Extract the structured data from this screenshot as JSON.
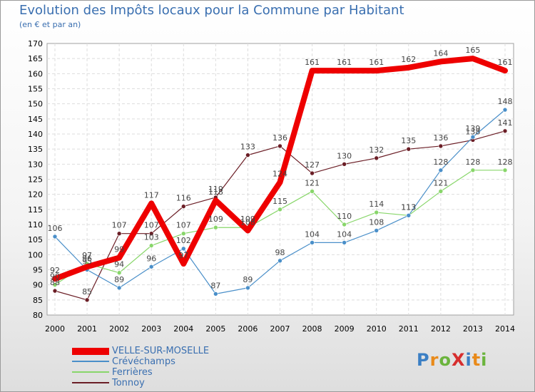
{
  "header": {
    "title": "Evolution des Impôts locaux pour la Commune par Habitant",
    "subtitle": "(en € et par an)"
  },
  "logo": "ProXiti",
  "colors": {
    "title": "#3a6fb0",
    "VELLE-SUR-MOSELLE": "#ee0000",
    "Crévéchamps": "#4a8fc9",
    "Ferrières": "#88d66a",
    "Tonnoy": "#6b1e26"
  },
  "chart_data": {
    "type": "line",
    "title": "Evolution des Impôts locaux pour la Commune par Habitant",
    "subtitle": "(en € et par an)",
    "x": [
      "2000",
      "2001",
      "2002",
      "2003",
      "2004",
      "2005",
      "2006",
      "2007",
      "2008",
      "2009",
      "2010",
      "2011",
      "2012",
      "2013",
      "2014"
    ],
    "ylim": [
      80,
      170
    ],
    "yticks": [
      80,
      85,
      90,
      95,
      100,
      105,
      110,
      115,
      120,
      125,
      130,
      135,
      140,
      145,
      150,
      155,
      160,
      165,
      170
    ],
    "grid": true,
    "legend_position": "bottom-left",
    "series": [
      {
        "name": "VELLE-SUR-MOSELLE",
        "values": [
          92,
          96,
          99,
          117,
          97,
          118,
          108,
          124,
          161,
          161,
          161,
          162,
          164,
          165,
          161
        ]
      },
      {
        "name": "Crévéchamps",
        "values": [
          106,
          95,
          89,
          96,
          102,
          87,
          89,
          98,
          104,
          104,
          108,
          113,
          128,
          139,
          148
        ]
      },
      {
        "name": "Ferrières",
        "values": [
          90,
          97,
          94,
          103,
          107,
          109,
          109,
          115,
          121,
          110,
          114,
          113,
          121,
          128,
          128
        ]
      },
      {
        "name": "Tonnoy",
        "values": [
          88,
          85,
          107,
          107,
          116,
          119,
          133,
          136,
          127,
          130,
          132,
          135,
          136,
          138,
          141
        ]
      }
    ]
  }
}
